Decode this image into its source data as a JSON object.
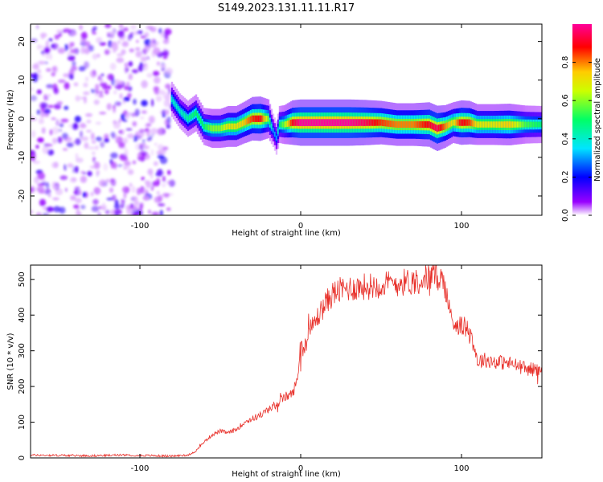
{
  "title": "S149.2023.131.11.11.R17",
  "chart_data": [
    {
      "type": "heatmap",
      "xlabel": "Height of straight line (km)",
      "ylabel": "Frequency (Hz)",
      "xlim": [
        -168,
        150
      ],
      "ylim": [
        -25,
        24.5
      ],
      "xticks": [
        -100,
        0,
        100
      ],
      "yticks": [
        -20,
        -10,
        0,
        10,
        20
      ],
      "colorbar": {
        "label": "Normalized spectral amplitude",
        "ticks": [
          "0.0",
          "0.2",
          "0.4",
          "0.6",
          "0.8"
        ],
        "range": [
          0,
          1
        ],
        "colors": [
          "#ffffff",
          "#9900ff",
          "#0000ff",
          "#00e5ff",
          "#00ff66",
          "#ccff00",
          "#ffcc00",
          "#ff0000",
          "#ff0099"
        ]
      },
      "noise_region_x": [
        -168,
        -80
      ],
      "ridge": {
        "x": [
          -80,
          -75,
          -70,
          -65,
          -60,
          -55,
          -50,
          -45,
          -40,
          -35,
          -30,
          -25,
          -20,
          -17,
          -15,
          -13,
          -10,
          -5,
          0,
          10,
          20,
          30,
          40,
          50,
          60,
          70,
          80,
          85,
          90,
          95,
          100,
          105,
          110,
          120,
          130,
          140,
          150
        ],
        "freq": [
          5,
          2,
          0,
          1.5,
          -2,
          -2.5,
          -2.5,
          -2,
          -2,
          -1,
          0,
          0,
          0,
          -3,
          -5,
          -1.5,
          -1.5,
          -1,
          -1,
          -1,
          -1,
          -1,
          -1,
          -1,
          -1.5,
          -1.5,
          -1.5,
          -2.5,
          -2,
          -1,
          -1,
          -1,
          -1.5,
          -1.5,
          -1.5,
          -1.5,
          -1.5
        ],
        "amp": [
          0.4,
          0.4,
          0.45,
          0.5,
          0.5,
          0.6,
          0.6,
          0.7,
          0.7,
          0.75,
          0.85,
          0.9,
          0.6,
          0.3,
          0.3,
          0.5,
          0.6,
          0.9,
          1.0,
          1.0,
          1.0,
          1.0,
          0.95,
          0.85,
          0.8,
          0.8,
          0.9,
          0.95,
          0.8,
          0.7,
          0.9,
          0.85,
          0.7,
          0.7,
          0.75,
          0.55,
          0.5
        ]
      }
    },
    {
      "type": "line",
      "xlabel": "Height of straight line (km)",
      "ylabel": "SNR (10 * v/v)",
      "xlim": [
        -168,
        150
      ],
      "ylim": [
        0,
        540
      ],
      "xticks": [
        -100,
        0,
        100
      ],
      "yticks": [
        0,
        100,
        200,
        300,
        400,
        500
      ],
      "color": "#e8302a",
      "series": [
        {
          "x": [
            -168,
            -150,
            -130,
            -110,
            -90,
            -80,
            -70,
            -65,
            -60,
            -55,
            -50,
            -45,
            -40,
            -35,
            -30,
            -25,
            -20,
            -15,
            -10,
            -5,
            -2,
            0,
            2,
            5,
            10,
            15,
            20,
            25,
            30,
            40,
            50,
            60,
            70,
            80,
            85,
            88,
            90,
            92,
            95,
            100,
            105,
            108,
            110,
            115,
            120,
            130,
            140,
            150
          ],
          "y": [
            8,
            7,
            6,
            8,
            6,
            5,
            8,
            20,
            45,
            65,
            75,
            70,
            80,
            100,
            110,
            120,
            135,
            150,
            170,
            180,
            220,
            330,
            300,
            350,
            390,
            430,
            460,
            470,
            475,
            480,
            485,
            490,
            495,
            505,
            510,
            500,
            480,
            420,
            380,
            370,
            360,
            310,
            270,
            275,
            270,
            265,
            250,
            245
          ]
        }
      ]
    }
  ]
}
